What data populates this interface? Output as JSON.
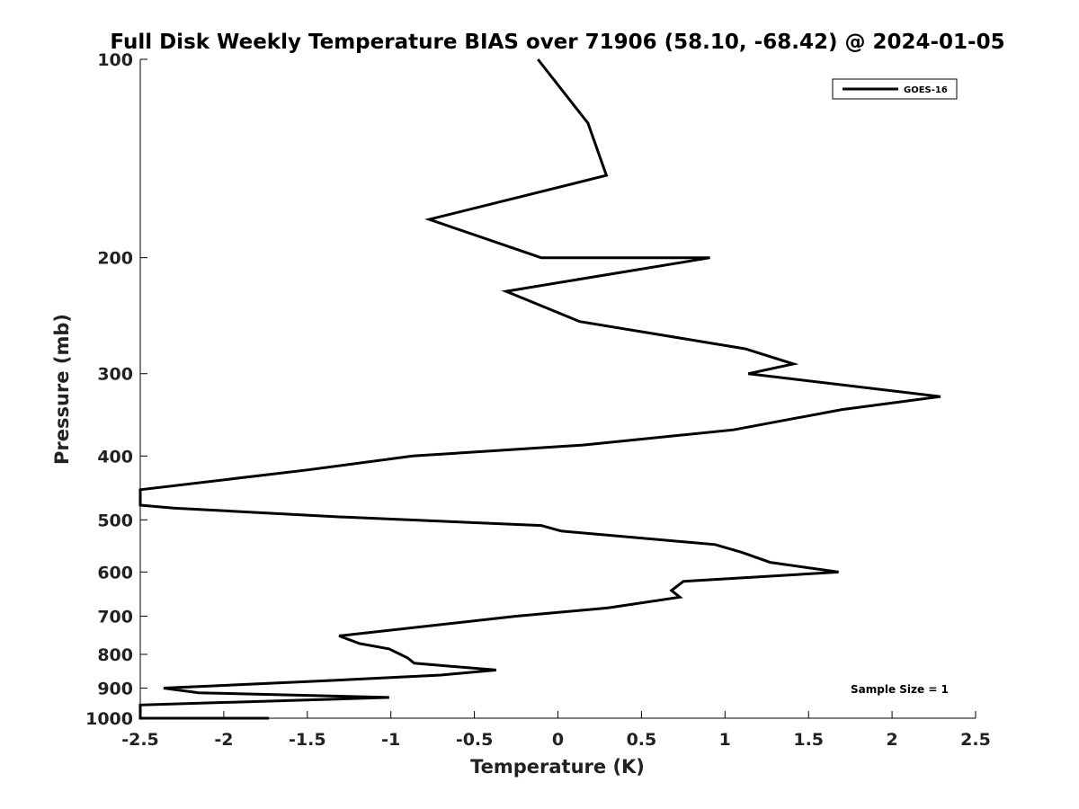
{
  "chart_data": {
    "type": "line",
    "title": "Full Disk Weekly Temperature BIAS over 71906 (58.10, -68.42) @ 2024-01-05",
    "xlabel": "Temperature (K)",
    "ylabel": "Pressure (mb)",
    "xlim": [
      -2.5,
      2.5
    ],
    "ylim": [
      1000,
      100
    ],
    "y_scale": "log",
    "x_ticks": [
      -2.5,
      -2,
      -1.5,
      -1,
      -0.5,
      0,
      0.5,
      1,
      1.5,
      2,
      2.5
    ],
    "x_tick_labels": [
      "-2.5",
      "-2",
      "-1.5",
      "-1",
      "-0.5",
      "0",
      "0.5",
      "1",
      "1.5",
      "2",
      "2.5"
    ],
    "y_ticks": [
      100,
      200,
      300,
      400,
      500,
      600,
      700,
      800,
      900,
      1000
    ],
    "y_tick_labels": [
      "100",
      "200",
      "300",
      "400",
      "500",
      "600",
      "700",
      "800",
      "900",
      "1000"
    ],
    "grid": false,
    "legend_position": "top-right",
    "series": [
      {
        "name": "GOES-16",
        "color": "#000000",
        "points": [
          {
            "temp": -0.12,
            "pressure": 100
          },
          {
            "temp": 0.18,
            "pressure": 125
          },
          {
            "temp": 0.29,
            "pressure": 150
          },
          {
            "temp": -0.77,
            "pressure": 175
          },
          {
            "temp": -0.1,
            "pressure": 200
          },
          {
            "temp": 0.91,
            "pressure": 200
          },
          {
            "temp": -0.31,
            "pressure": 225
          },
          {
            "temp": 0.13,
            "pressure": 250
          },
          {
            "temp": 1.12,
            "pressure": 275
          },
          {
            "temp": 1.41,
            "pressure": 290
          },
          {
            "temp": 1.14,
            "pressure": 300
          },
          {
            "temp": 2.29,
            "pressure": 325
          },
          {
            "temp": 1.7,
            "pressure": 340
          },
          {
            "temp": 1.05,
            "pressure": 365
          },
          {
            "temp": 0.15,
            "pressure": 385
          },
          {
            "temp": -0.87,
            "pressure": 400
          },
          {
            "temp": -1.5,
            "pressure": 420
          },
          {
            "temp": -2.5,
            "pressure": 450
          },
          {
            "temp": -2.5,
            "pressure": 475
          },
          {
            "temp": -2.3,
            "pressure": 480
          },
          {
            "temp": -1.3,
            "pressure": 495
          },
          {
            "temp": -0.1,
            "pressure": 510
          },
          {
            "temp": 0.02,
            "pressure": 520
          },
          {
            "temp": 0.94,
            "pressure": 545
          },
          {
            "temp": 1.1,
            "pressure": 560
          },
          {
            "temp": 1.27,
            "pressure": 580
          },
          {
            "temp": 1.68,
            "pressure": 600
          },
          {
            "temp": 0.75,
            "pressure": 620
          },
          {
            "temp": 0.68,
            "pressure": 640
          },
          {
            "temp": 0.73,
            "pressure": 655
          },
          {
            "temp": 0.3,
            "pressure": 680
          },
          {
            "temp": -0.25,
            "pressure": 700
          },
          {
            "temp": -1.31,
            "pressure": 750
          },
          {
            "temp": -1.19,
            "pressure": 770
          },
          {
            "temp": -1.01,
            "pressure": 785
          },
          {
            "temp": -0.9,
            "pressure": 810
          },
          {
            "temp": -0.86,
            "pressure": 825
          },
          {
            "temp": -0.37,
            "pressure": 845
          },
          {
            "temp": -0.7,
            "pressure": 860
          },
          {
            "temp": -1.5,
            "pressure": 880
          },
          {
            "temp": -2.36,
            "pressure": 900
          },
          {
            "temp": -2.15,
            "pressure": 915
          },
          {
            "temp": -1.01,
            "pressure": 930
          },
          {
            "temp": -2.5,
            "pressure": 955
          },
          {
            "temp": -2.5,
            "pressure": 1000
          },
          {
            "temp": -1.73,
            "pressure": 1000
          }
        ]
      }
    ],
    "annotation": "Sample Size = 1"
  }
}
